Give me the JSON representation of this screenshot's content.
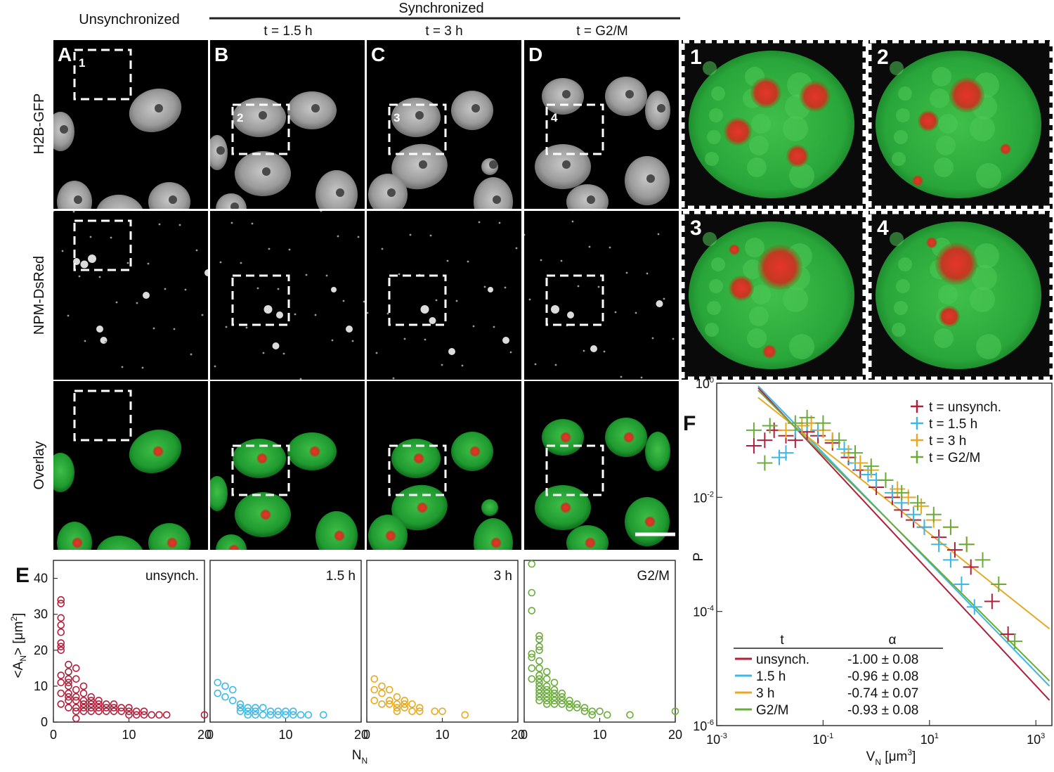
{
  "header": {
    "unsync_label": "Unsynchronized",
    "sync_label": "Synchronized",
    "columns": [
      {
        "letter": "A",
        "time": ""
      },
      {
        "letter": "B",
        "time": "t = 1.5 h"
      },
      {
        "letter": "C",
        "time": "t = 3 h"
      },
      {
        "letter": "D",
        "time": "t = G2/M"
      }
    ]
  },
  "row_labels": [
    "H2B-GFP",
    "NPM-DsRed",
    "Overlay"
  ],
  "roi_labels": [
    "1",
    "2",
    "3",
    "4"
  ],
  "zoom_panels": [
    "1",
    "2",
    "3",
    "4"
  ],
  "panel_E": {
    "letter": "E",
    "ylabel_main": "<A",
    "ylabel_sub": "N",
    "ylabel_tail": "> [μm",
    "ylabel_sup": "2",
    "ylabel_end": "]",
    "xlabel_main": "N",
    "xlabel_sub": "N"
  },
  "panel_F": {
    "letter": "F",
    "ylabel": "P",
    "xlabel_main": "V",
    "xlabel_sub": "N",
    "xlabel_unit": " [μm",
    "xlabel_sup": "3",
    "xlabel_end": "]",
    "table_header": [
      "t",
      "α"
    ],
    "table_rows": [
      {
        "name": "unsynch.",
        "alpha": "-1.00 ± 0.08"
      },
      {
        "name": "1.5 h",
        "alpha": "-0.96 ± 0.08"
      },
      {
        "name": "3 h",
        "alpha": "-0.74 ± 0.07"
      },
      {
        "name": "G2/M",
        "alpha": "-0.93 ± 0.08"
      }
    ],
    "legend": [
      "t = unsynch.",
      "t = 1.5 h",
      "t = 3 h",
      "t = G2/M"
    ]
  },
  "colors": {
    "unsynch": "#b0203a",
    "h15": "#3db8e6",
    "h3": "#e8a820",
    "g2m": "#6aab3a"
  },
  "chart_data": [
    {
      "type": "scatter",
      "panel": "E",
      "xlim": [
        0,
        20
      ],
      "ylim": [
        0,
        45
      ],
      "xticks": [
        0,
        10,
        20
      ],
      "yticks": [
        0,
        10,
        20,
        30,
        40
      ],
      "series": [
        {
          "name": "unsynch.",
          "x": [
            1,
            1,
            1,
            1,
            1,
            1,
            1,
            1,
            1,
            1,
            1,
            1,
            2,
            2,
            2,
            2,
            2,
            2,
            2,
            2,
            2,
            3,
            3,
            3,
            3,
            3,
            3,
            3,
            3,
            4,
            4,
            4,
            4,
            4,
            4,
            5,
            5,
            5,
            5,
            5,
            6,
            6,
            6,
            6,
            7,
            7,
            7,
            8,
            8,
            8,
            9,
            9,
            10,
            10,
            10,
            11,
            11,
            12,
            12,
            13,
            14,
            15,
            20
          ],
          "y": [
            34,
            33,
            29,
            27,
            25,
            22,
            21,
            20,
            13,
            11,
            8,
            5,
            16,
            14,
            12,
            11,
            10,
            8,
            7,
            6,
            4,
            15,
            12,
            9,
            7,
            6,
            4,
            3,
            1,
            10,
            8,
            6,
            5,
            4,
            3,
            7,
            6,
            5,
            4,
            3,
            6,
            5,
            4,
            3,
            5,
            4,
            3,
            5,
            4,
            3,
            4,
            3,
            4,
            3,
            2,
            3,
            2,
            3,
            2,
            2,
            2,
            2,
            2
          ]
        },
        {
          "name": "1.5 h",
          "x": [
            1,
            1,
            2,
            2,
            3,
            3,
            4,
            4,
            4,
            5,
            5,
            5,
            6,
            6,
            6,
            7,
            7,
            8,
            8,
            9,
            9,
            10,
            10,
            11,
            11,
            12,
            13,
            15
          ],
          "y": [
            11,
            8,
            10,
            7,
            9,
            6,
            5,
            4,
            3,
            4,
            3,
            2,
            4,
            3,
            2,
            4,
            2,
            3,
            2,
            3,
            2,
            3,
            2,
            3,
            2,
            2,
            2,
            2
          ]
        },
        {
          "name": "3 h",
          "x": [
            1,
            1,
            1,
            2,
            2,
            2,
            3,
            3,
            3,
            4,
            4,
            4,
            4,
            5,
            5,
            5,
            6,
            6,
            7,
            7,
            9,
            10,
            13
          ],
          "y": [
            12,
            9,
            6,
            10,
            8,
            5,
            9,
            6,
            5,
            7,
            5,
            4,
            3,
            6,
            5,
            4,
            5,
            3,
            4,
            3,
            3,
            3,
            2
          ]
        },
        {
          "name": "G2/M",
          "x": [
            1,
            1,
            1,
            1,
            1,
            1,
            1,
            2,
            2,
            2,
            2,
            2,
            2,
            2,
            2,
            2,
            2,
            2,
            2,
            2,
            2,
            3,
            3,
            3,
            3,
            3,
            3,
            3,
            3,
            4,
            4,
            4,
            4,
            4,
            4,
            5,
            5,
            5,
            5,
            6,
            6,
            6,
            7,
            7,
            8,
            8,
            9,
            9,
            10,
            11,
            14,
            20
          ],
          "y": [
            44,
            36,
            31,
            19,
            18,
            15,
            12,
            24,
            23,
            21,
            20,
            17,
            15,
            13,
            12,
            11,
            10,
            9,
            8,
            7,
            6,
            14,
            12,
            10,
            9,
            8,
            7,
            6,
            5,
            11,
            9,
            8,
            7,
            6,
            5,
            8,
            7,
            6,
            5,
            6,
            5,
            4,
            5,
            4,
            4,
            3,
            3,
            2,
            3,
            2,
            2,
            3
          ]
        }
      ]
    },
    {
      "type": "scatter",
      "panel": "F",
      "xscale": "log",
      "yscale": "log",
      "xlim": [
        0.001,
        2000
      ],
      "ylim": [
        1e-06,
        1
      ],
      "xticks": [
        "10^-3",
        "10^-1",
        "10^1",
        "10^3"
      ],
      "yticks": [
        "10^-6",
        "10^-4",
        "10^-2",
        "10^0"
      ],
      "series": [
        {
          "name": "t = unsynch.",
          "x": [
            0.005,
            0.008,
            0.012,
            0.02,
            0.03,
            0.05,
            0.08,
            0.15,
            0.3,
            0.5,
            1,
            2,
            3,
            5,
            8,
            15,
            30,
            60,
            150,
            300
          ],
          "y": [
            0.08,
            0.1,
            0.15,
            0.12,
            0.1,
            0.14,
            0.12,
            0.09,
            0.05,
            0.03,
            0.015,
            0.01,
            0.006,
            0.004,
            0.003,
            0.002,
            0.0012,
            0.0006,
            0.00015,
            4e-05
          ]
        },
        {
          "name": "t = 1.5 h",
          "x": [
            0.015,
            0.02,
            0.03,
            0.05,
            0.08,
            0.15,
            0.25,
            0.4,
            0.7,
            1,
            2,
            3,
            5,
            8,
            15,
            25,
            40,
            70
          ],
          "y": [
            0.05,
            0.06,
            0.15,
            0.2,
            0.15,
            0.1,
            0.07,
            0.04,
            0.025,
            0.02,
            0.012,
            0.008,
            0.005,
            0.003,
            0.0015,
            0.0008,
            0.0003,
            0.00012
          ]
        },
        {
          "name": "t = 3 h",
          "x": [
            0.02,
            0.04,
            0.06,
            0.1,
            0.15,
            0.3,
            0.5,
            0.8,
            1.5,
            2.5,
            4,
            7,
            12,
            25,
            50
          ],
          "y": [
            0.15,
            0.18,
            0.2,
            0.15,
            0.1,
            0.06,
            0.04,
            0.03,
            0.02,
            0.014,
            0.01,
            0.007,
            0.004,
            0.003,
            0.0015
          ]
        },
        {
          "name": "t = G2/M",
          "x": [
            0.005,
            0.008,
            0.01,
            0.03,
            0.05,
            0.1,
            0.2,
            0.4,
            0.8,
            1.5,
            3,
            6,
            12,
            25,
            50,
            100,
            200,
            400
          ],
          "y": [
            0.15,
            0.04,
            0.18,
            0.2,
            0.25,
            0.2,
            0.1,
            0.06,
            0.035,
            0.02,
            0.012,
            0.008,
            0.005,
            0.003,
            0.0015,
            0.0008,
            0.0003,
            3e-05
          ]
        }
      ],
      "fits": [
        {
          "name": "unsynch.",
          "alpha": -1.0
        },
        {
          "name": "1.5 h",
          "alpha": -0.96
        },
        {
          "name": "3 h",
          "alpha": -0.74
        },
        {
          "name": "G2/M",
          "alpha": -0.93
        }
      ]
    }
  ]
}
